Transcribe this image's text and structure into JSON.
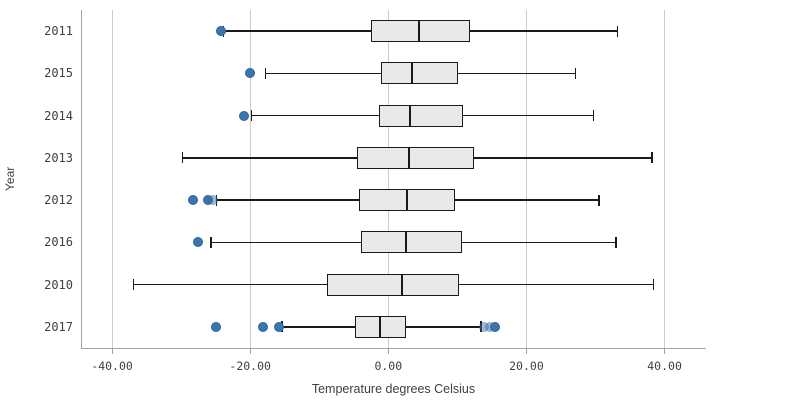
{
  "colors": {
    "outlier_dot": "#3a75ad",
    "outlier_dot_border": "#326499",
    "box_fill": "#e9e9e9",
    "box_stroke": "#1a1a1a",
    "grid_line": "#cccccc",
    "axis_line": "#a3a3a3",
    "text": "#404040"
  },
  "chart_data": {
    "type": "boxplot",
    "orientation": "horizontal",
    "xlabel": "Temperature degrees Celsius",
    "ylabel": "Year",
    "xlim": [
      -44.5,
      46
    ],
    "grid": true,
    "x_ticks": [
      {
        "value": -40,
        "label": "-40.00"
      },
      {
        "value": -20,
        "label": "-20.00"
      },
      {
        "value": 0,
        "label": "0.00"
      },
      {
        "value": 20,
        "label": "20.00"
      },
      {
        "value": 40,
        "label": "40.00"
      }
    ],
    "categories": [
      "2011",
      "2015",
      "2014",
      "2013",
      "2012",
      "2016",
      "2010",
      "2017"
    ],
    "series": [
      {
        "category": "2011",
        "whisker_low": -23.9,
        "q1": -2.5,
        "median": 4.4,
        "q3": 11.8,
        "whisker_high": 33.2,
        "outliers": [
          {
            "value": -24.3,
            "faint": false
          }
        ]
      },
      {
        "category": "2015",
        "whisker_low": -17.8,
        "q1": -1.1,
        "median": 3.4,
        "q3": 10.1,
        "whisker_high": 27.1,
        "outliers": [
          {
            "value": -20.0,
            "faint": false
          }
        ]
      },
      {
        "category": "2014",
        "whisker_low": -19.8,
        "q1": -1.4,
        "median": 3.1,
        "q3": 10.8,
        "whisker_high": 29.7,
        "outliers": [
          {
            "value": -20.9,
            "faint": false
          }
        ]
      },
      {
        "category": "2013",
        "whisker_low": -29.8,
        "q1": -4.5,
        "median": 3.0,
        "q3": 12.4,
        "whisker_high": 38.2,
        "outliers": []
      },
      {
        "category": "2012",
        "whisker_low": -24.9,
        "q1": -4.2,
        "median": 2.7,
        "q3": 9.7,
        "whisker_high": 30.5,
        "outliers": [
          {
            "value": -28.3,
            "faint": false
          },
          {
            "value": -26.1,
            "faint": false
          },
          {
            "value": -25.4,
            "faint": true
          }
        ]
      },
      {
        "category": "2016",
        "whisker_low": -25.7,
        "q1": -3.9,
        "median": 2.5,
        "q3": 10.7,
        "whisker_high": 33.0,
        "outliers": [
          {
            "value": -27.6,
            "faint": false
          }
        ]
      },
      {
        "category": "2010",
        "whisker_low": -36.9,
        "q1": -8.9,
        "median": 2.0,
        "q3": 10.2,
        "whisker_high": 38.4,
        "outliers": []
      },
      {
        "category": "2017",
        "whisker_low": -15.4,
        "q1": -4.8,
        "median": -1.2,
        "q3": 2.5,
        "whisker_high": 13.4,
        "outliers": [
          {
            "value": -24.9,
            "faint": false
          },
          {
            "value": -18.1,
            "faint": false
          },
          {
            "value": -15.9,
            "faint": false
          },
          {
            "value": 13.9,
            "faint": true
          },
          {
            "value": 14.7,
            "faint": true
          },
          {
            "value": 15.5,
            "faint": false
          }
        ]
      }
    ]
  }
}
